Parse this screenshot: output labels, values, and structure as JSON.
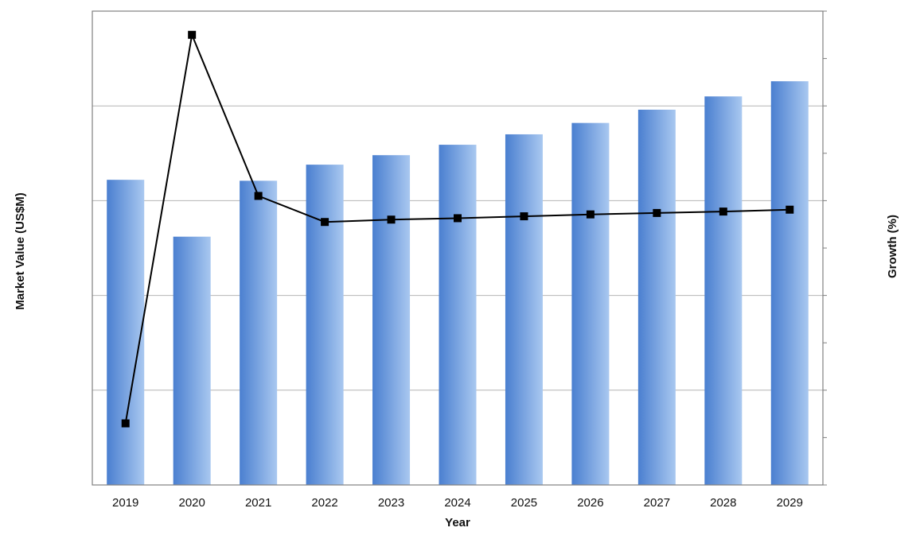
{
  "chart_data": {
    "type": "bar",
    "title": "",
    "xlabel": "Year",
    "ylabel": "Market Value (US$M)",
    "y2label": "Growth (%)",
    "categories": [
      "2019",
      "2020",
      "2021",
      "2022",
      "2023",
      "2024",
      "2025",
      "2026",
      "2027",
      "2028",
      "2029"
    ],
    "ylim": [
      0,
      5
    ],
    "y2lim": [
      0,
      10
    ],
    "series": [
      {
        "name": "",
        "type": "bar",
        "axis": "left",
        "values": [
          3.22,
          2.62,
          3.21,
          3.38,
          3.48,
          3.59,
          3.7,
          3.82,
          3.96,
          4.1,
          4.26
        ]
      },
      {
        "name": "",
        "type": "line",
        "axis": "right",
        "values": [
          1.3,
          9.5,
          6.1,
          5.55,
          5.6,
          5.63,
          5.67,
          5.71,
          5.74,
          5.77,
          5.81
        ]
      }
    ],
    "grid": true,
    "legend": "none",
    "colors": {
      "bar_dark": "#4a7fd0",
      "bar_light": "#a9c8f0",
      "line": "#000000",
      "grid": "#b4b4b4",
      "frame": "#808080"
    }
  }
}
